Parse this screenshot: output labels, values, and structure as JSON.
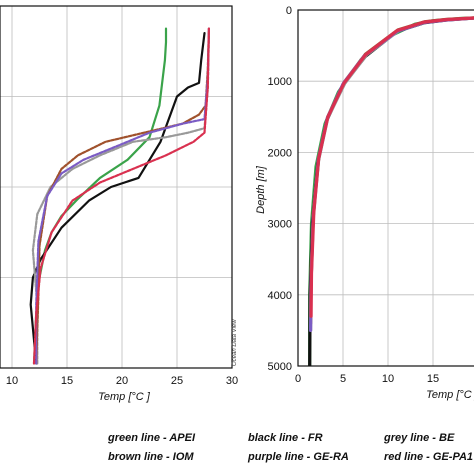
{
  "chart_data": [
    {
      "type": "line",
      "xlabel": "Temp [°C ]",
      "ylabel": "",
      "xlim": [
        10,
        30
      ],
      "xticks": [
        10,
        15,
        20,
        25,
        30
      ],
      "ylim": [
        0,
        400
      ],
      "y_inverted": true,
      "watermark": "Ocean Data View",
      "grid": true,
      "series": [
        {
          "name": "APEI",
          "color": "#3aa34a",
          "x": [
            12.0,
            12.2,
            12.5,
            13.0,
            13.6,
            14.5,
            16.0,
            18.0,
            20.5,
            22.5,
            23.4,
            23.7,
            23.9,
            24.0,
            24.0
          ],
          "y": [
            395,
            340,
            300,
            270,
            250,
            232,
            213,
            190,
            170,
            145,
            110,
            80,
            60,
            40,
            25
          ]
        },
        {
          "name": "FR",
          "color": "#111111",
          "x": [
            12.2,
            11.7,
            11.9,
            12.6,
            14.5,
            17.0,
            19.0,
            21.5,
            23.5,
            25.0,
            26.0,
            27.0,
            27.2,
            27.5
          ],
          "y": [
            395,
            330,
            300,
            280,
            245,
            215,
            200,
            190,
            150,
            100,
            90,
            85,
            60,
            30
          ]
        },
        {
          "name": "BE",
          "color": "#999999",
          "x": [
            12.3,
            12.3,
            11.9,
            12.3,
            13.5,
            15.5,
            18.0,
            21.0,
            24.0,
            26.0,
            27.5,
            27.8,
            27.9
          ],
          "y": [
            395,
            330,
            270,
            230,
            200,
            180,
            165,
            150,
            145,
            140,
            135,
            90,
            30
          ]
        },
        {
          "name": "IOM",
          "color": "#a0522d",
          "x": [
            12.2,
            12.4,
            12.5,
            13.2,
            14.5,
            16.0,
            18.5,
            22.0,
            25.5,
            27.0,
            27.6,
            27.8,
            27.9
          ],
          "y": [
            395,
            320,
            265,
            210,
            180,
            165,
            150,
            140,
            130,
            120,
            110,
            70,
            25
          ]
        },
        {
          "name": "GE-RA",
          "color": "#7b5cc4",
          "x": [
            12.2,
            12.2,
            12.4,
            13.2,
            14.5,
            16.5,
            19.5,
            22.5,
            25.5,
            27.5,
            27.8,
            27.9
          ],
          "y": [
            395,
            330,
            260,
            210,
            185,
            170,
            155,
            140,
            130,
            125,
            80,
            25
          ]
        },
        {
          "name": "GE-PA1",
          "color": "#d9304f",
          "x": [
            12.0,
            12.2,
            12.6,
            13.6,
            15.5,
            18.0,
            21.0,
            24.0,
            26.5,
            27.5,
            27.8,
            27.9
          ],
          "y": [
            395,
            340,
            290,
            250,
            215,
            195,
            180,
            165,
            150,
            140,
            90,
            25
          ]
        }
      ]
    },
    {
      "type": "line",
      "xlabel": "Temp [°C ]",
      "ylabel": "Depth [m]",
      "xlim": [
        0,
        20
      ],
      "xticks": [
        0,
        5,
        10,
        15
      ],
      "ylim": [
        0,
        5000
      ],
      "yticks": [
        0,
        1000,
        2000,
        3000,
        4000,
        5000
      ],
      "y_inverted": true,
      "grid": true,
      "series": [
        {
          "name": "APEI",
          "color": "#3aa34a",
          "x": [
            1.3,
            1.3,
            1.5,
            2.0,
            3.0,
            4.5,
            7.0,
            10.5,
            13.0,
            15.0,
            18.0,
            20.0
          ],
          "y": [
            5000,
            4000,
            3000,
            2200,
            1600,
            1150,
            700,
            350,
            200,
            150,
            120,
            110
          ]
        },
        {
          "name": "FR",
          "color": "#111111",
          "x": [
            1.3,
            1.35,
            1.6,
            2.2,
            3.2,
            5.0,
            7.5,
            11.0,
            14.0,
            16.5,
            20.0
          ],
          "y": [
            5000,
            4000,
            3000,
            2150,
            1550,
            1050,
            650,
            300,
            180,
            140,
            110
          ]
        },
        {
          "name": "BE",
          "color": "#999999",
          "x": [
            1.4,
            1.45,
            1.7,
            2.3,
            3.3,
            5.2,
            7.6,
            11.2,
            14.2,
            16.6,
            20.0
          ],
          "y": [
            4500,
            3800,
            2900,
            2100,
            1520,
            1030,
            630,
            290,
            170,
            135,
            110
          ]
        },
        {
          "name": "IOM",
          "color": "#a0522d",
          "x": [
            1.4,
            1.45,
            1.7,
            2.3,
            3.3,
            5.1,
            7.5,
            11.1,
            14.1,
            16.5,
            20.0
          ],
          "y": [
            4400,
            3700,
            2850,
            2080,
            1500,
            1020,
            620,
            280,
            165,
            130,
            108
          ]
        },
        {
          "name": "GE-RA",
          "color": "#7b5cc4",
          "x": [
            1.4,
            1.45,
            1.7,
            2.25,
            3.25,
            5.0,
            7.4,
            11.0,
            14.0,
            16.5,
            20.0
          ],
          "y": [
            4500,
            3800,
            2900,
            2100,
            1520,
            1040,
            640,
            300,
            175,
            140,
            110
          ]
        },
        {
          "name": "GE-PA1",
          "color": "#d9304f",
          "x": [
            1.45,
            1.5,
            1.75,
            2.3,
            3.3,
            5.1,
            7.5,
            11.0,
            14.0,
            16.5,
            20.0
          ],
          "y": [
            4300,
            3700,
            2850,
            2080,
            1510,
            1030,
            630,
            290,
            170,
            135,
            110
          ]
        }
      ]
    }
  ],
  "legend": {
    "items": [
      {
        "text": "green line - APEI",
        "color": "#3aa34a"
      },
      {
        "text": "black line - FR",
        "color": "#111111"
      },
      {
        "text": "grey line - BE",
        "color": "#999999"
      },
      {
        "text": "brown line - IOM",
        "color": "#a0522d"
      },
      {
        "text": "purple line - GE-RA",
        "color": "#7b5cc4"
      },
      {
        "text": "red line - GE-PA1",
        "color": "#d9304f"
      }
    ]
  }
}
